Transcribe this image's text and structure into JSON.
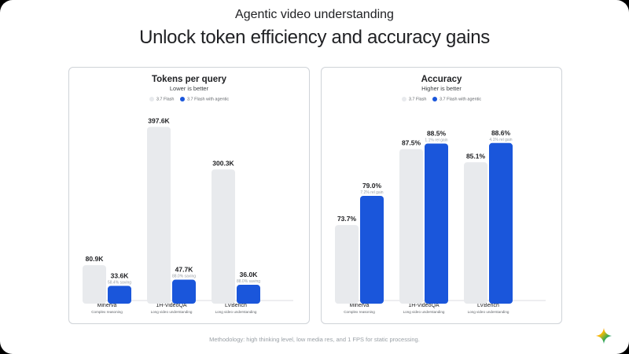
{
  "header": {
    "eyebrow": "Agentic video understanding",
    "title": "Unlock token efficiency and accuracy gains"
  },
  "colors": {
    "baseline": "#e8eaed",
    "agentic": "#1a56db"
  },
  "footnote": "Methodology: high thinking level, low media res, and 1 FPS for static processing.",
  "chart_data": [
    {
      "type": "bar",
      "title": "Tokens per query",
      "subtitle": "Lower is better",
      "categories": [
        "Minerva",
        "1H-VideoQA",
        "LVBench"
      ],
      "category_subtitles": [
        "Complex reasoning",
        "Long video understanding",
        "Long video understanding"
      ],
      "series": [
        {
          "name": "3.7 Flash",
          "values": [
            80.9,
            397.6,
            300.3
          ],
          "labels": [
            "80.9K",
            "397.6K",
            "300.3K"
          ]
        },
        {
          "name": "3.7 Flash with agentic",
          "values": [
            33.6,
            47.7,
            36.0
          ],
          "labels": [
            "33.6K",
            "47.7K",
            "36.0K"
          ],
          "annotations": [
            "58.4% saving",
            "88.0% saving",
            "88.0% saving"
          ]
        }
      ],
      "ylim": [
        0,
        400
      ],
      "legend": "top-center",
      "grid": false
    },
    {
      "type": "bar",
      "title": "Accuracy",
      "subtitle": "Higher is better",
      "categories": [
        "Minerva",
        "1H-VideoQA",
        "LVBench"
      ],
      "category_subtitles": [
        "Complex reasoning",
        "Long video understanding",
        "Long video understanding"
      ],
      "series": [
        {
          "name": "3.7 Flash",
          "values": [
            73.7,
            87.5,
            85.1
          ],
          "labels": [
            "73.7%",
            "87.5%",
            "85.1%"
          ]
        },
        {
          "name": "3.7 Flash with agentic",
          "values": [
            79.0,
            88.5,
            88.6
          ],
          "labels": [
            "79.0%",
            "88.5%",
            "88.6%"
          ],
          "annotations": [
            "7.2% rel gain",
            "1.1% rel gain",
            "4.1% rel gain"
          ]
        }
      ],
      "ylim": [
        60,
        90
      ],
      "legend": "top-center",
      "grid": false
    }
  ]
}
